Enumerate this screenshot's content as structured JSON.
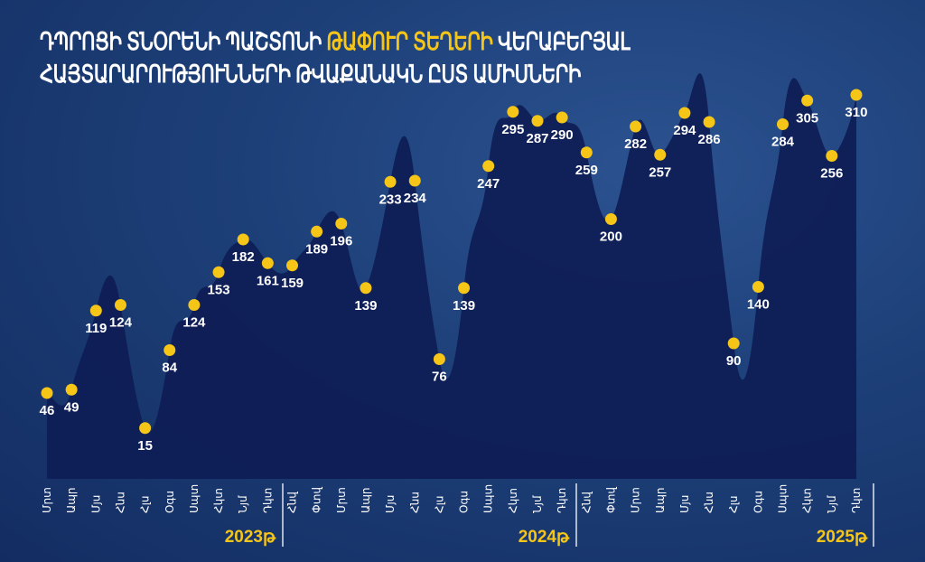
{
  "title": {
    "line1_part1": "ԴՊՐՈՑԻ ՏՆՕՐԵՆԻ ՊԱՇՏՈՆԻ",
    "line1_highlight": "ԹԱՓՈՒՐ ՏԵՂԵՐԻ",
    "line1_part2": "ՎԵՐԱԲԵՐՅԱԼ",
    "line2": "ՀԱՅՏԱՐԱՐՈՒԹՅՈՒՆՆԵՐԻ ԹՎԱՔԱՆԱԿՆ ԸՍՏ ԱՄԻՍՆԵՐԻ"
  },
  "colors": {
    "accent": "#f5c518",
    "area": "#0e1c55",
    "background": "#1d3f78",
    "text": "#ffffff"
  },
  "chart_data": {
    "type": "area",
    "title": "ԴՊՐՈՑԻ ՏՆՕՐԵՆԻ ՊԱՇՏՈՆԻ ԹԱՓՈՒՐ ՏԵՂԵՐԻ ՎԵՐԱԲԵՐՅԱԼ ՀԱՅՏԱՐԱՐՈՒԹՅՈՒՆՆԵՐԻ ԹՎԱՔԱՆԱԿՆ ԸՍՏ ԱՄԻՍՆԵՐԻ",
    "grid": false,
    "legend": "none",
    "groups": [
      {
        "label": "2023թ",
        "months": [
          "Մրտ",
          "Ապր",
          "Մյս",
          "Հնս",
          "Հլս",
          "Օգս",
          "Սպտ",
          "Հկտ",
          "Նյմ",
          "Դկտ"
        ],
        "values": [
          46,
          49,
          119,
          124,
          15,
          84,
          124,
          153,
          182,
          161
        ]
      },
      {
        "label": "2024թ",
        "months": [
          "Հնվ",
          "Փտվ",
          "Մրտ",
          "Ապր",
          "Մյս",
          "Հնս",
          "Հլս",
          "Օգս",
          "Սպտ",
          "Հկտ",
          "Նյմ",
          "Դկտ"
        ],
        "values": [
          159,
          189,
          196,
          139,
          233,
          234,
          76,
          139,
          247,
          295,
          287,
          290
        ]
      },
      {
        "label": "2025թ",
        "months": [
          "Հնվ",
          "Փտվ",
          "Մրտ",
          "Ապր",
          "Մյս",
          "Հնս",
          "Հլս",
          "Օգս",
          "Սպտ",
          "Հկտ",
          "Նյմ",
          "Դկտ"
        ],
        "values": [
          259,
          200,
          282,
          257,
          294,
          286,
          90,
          140,
          284,
          305,
          256,
          310
        ]
      }
    ]
  }
}
